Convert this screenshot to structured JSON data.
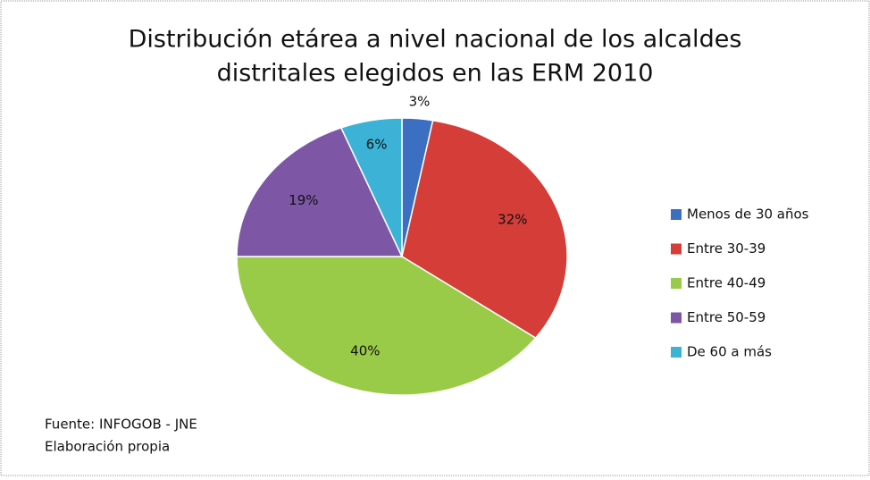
{
  "chart_data": {
    "type": "pie",
    "title": [
      "Distribución etárea a nivel nacional de los alcaldes",
      "distritales elegidos en las ERM 2010"
    ],
    "categories": [
      "Menos de 30 años",
      "Entre 30-39",
      "Entre 40-49",
      "Entre 50-59",
      "De 60 a más"
    ],
    "values": [
      3,
      32,
      40,
      19,
      6
    ],
    "value_labels": [
      "3%",
      "32%",
      "40%",
      "19%",
      "6%"
    ],
    "colors": [
      "#3c6fc2",
      "#d43d38",
      "#9acb48",
      "#7d57a6",
      "#3cb3d6"
    ],
    "legend": "right",
    "notes": [
      "Fuente: INFOGOB - JNE",
      "Elaboración propia"
    ]
  }
}
